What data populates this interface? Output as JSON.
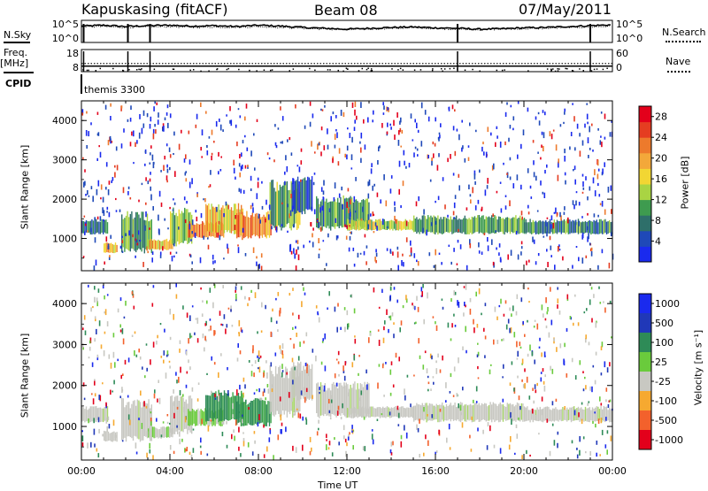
{
  "header": {
    "station": "Kapuskasing (fitACF)",
    "beam": "Beam 08",
    "date": "07/May/2011"
  },
  "labels": {
    "nsky": "N.Sky",
    "freq": "Freq.",
    "freq_unit": "[MHz]",
    "cpid": "CPID",
    "nsearch": "N.Search",
    "nave": "Nave",
    "cpid_value": "themis 3300",
    "slant_range": "Slant Range [km]",
    "time_ut": "Time UT",
    "power_label": "Power [dB]",
    "velocity_label": "Velocity [m s⁻¹]"
  },
  "colors": {
    "power_scale": [
      "#1a2aee",
      "#1f49b8",
      "#2e6f6a",
      "#3e9b4f",
      "#a9d443",
      "#f2d633",
      "#f3a83a",
      "#ed7a2c",
      "#e53d21",
      "#e3001b"
    ],
    "velocity_scale": [
      "#e3001b",
      "#f3612c",
      "#f6a930",
      "#c8c8c2",
      "#c8c8c2",
      "#6acb3c",
      "#2e8b57",
      "#2038b8",
      "#1a2aee"
    ]
  },
  "chart_data": [
    {
      "type": "line",
      "panel": "nsky-nsearch",
      "x_unit": "hours UT",
      "xlim": [
        0,
        24
      ],
      "y_tick_labels_left": [
        "10^5",
        "10^0"
      ],
      "y_tick_labels_right": [
        "10^5",
        "10^0"
      ],
      "series": [
        {
          "name": "N.Sky",
          "x": [
            0,
            1,
            2,
            3,
            4,
            5,
            6,
            7,
            8,
            9,
            10,
            11,
            12,
            13,
            14,
            15,
            16,
            17,
            18,
            19,
            20,
            21,
            22,
            23,
            24
          ],
          "values": [
            3.7,
            3.9,
            3.6,
            3.8,
            3.9,
            3.7,
            3.8,
            3.6,
            3.9,
            3.7,
            3.4,
            3.2,
            3.0,
            3.2,
            3.4,
            3.5,
            3.3,
            3.2,
            3.0,
            3.1,
            3.3,
            3.4,
            3.6,
            3.8,
            4.0
          ]
        },
        {
          "name": "N.Search",
          "x": [
            0,
            1,
            2,
            3,
            4,
            5,
            6,
            7,
            8,
            9,
            10,
            11,
            12,
            13,
            14,
            15,
            16,
            17,
            18,
            19,
            20,
            21,
            22,
            23,
            24
          ],
          "values": [
            3.5,
            3.6,
            3.4,
            3.5,
            3.6,
            3.4,
            3.5,
            3.4,
            3.6,
            3.4,
            3.2,
            3.0,
            2.9,
            3.0,
            3.2,
            3.3,
            3.1,
            3.0,
            2.9,
            3.0,
            3.1,
            3.2,
            3.4,
            3.5,
            3.7
          ]
        }
      ],
      "scan_markers_x": [
        0.1,
        2.1,
        3.1,
        17.0,
        23.0
      ]
    },
    {
      "type": "line",
      "panel": "freq-nave",
      "x_unit": "hours UT",
      "xlim": [
        0,
        24
      ],
      "y_tick_labels_left": [
        "18",
        "8"
      ],
      "y_tick_labels_right": [
        "60",
        "0"
      ],
      "series": [
        {
          "name": "Freq.",
          "x": [
            0,
            24
          ],
          "values": [
            10.5,
            10.5
          ]
        },
        {
          "name": "Nave",
          "x": [
            0,
            24
          ],
          "values": [
            22,
            22
          ]
        }
      ]
    },
    {
      "type": "heatmap",
      "panel": "power",
      "xlim": [
        0,
        24
      ],
      "ylim": [
        180,
        4500
      ],
      "x_tick_labels": [
        "00:00",
        "04:00",
        "08:00",
        "12:00",
        "16:00",
        "20:00",
        "00:00"
      ],
      "y_tick_labels": [
        "1000",
        "2000",
        "3000",
        "4000"
      ],
      "colorbar_ticks": [
        "4",
        "8",
        "12",
        "16",
        "20",
        "24",
        "28"
      ],
      "colorbar_range": [
        0,
        30
      ],
      "echo_regions": [
        {
          "t0": 0.0,
          "t1": 1.2,
          "r0": 1100,
          "r1": 1500,
          "value": 7
        },
        {
          "t0": 1.0,
          "t1": 1.6,
          "r0": 620,
          "r1": 900,
          "value": 18
        },
        {
          "t0": 1.8,
          "t1": 3.2,
          "r0": 620,
          "r1": 1700,
          "value": 10
        },
        {
          "t0": 3.0,
          "t1": 4.1,
          "r0": 700,
          "r1": 1000,
          "value": 19
        },
        {
          "t0": 4.0,
          "t1": 5.0,
          "r0": 800,
          "r1": 1800,
          "value": 12
        },
        {
          "t0": 4.8,
          "t1": 6.4,
          "r0": 1000,
          "r1": 1450,
          "value": 24
        },
        {
          "t0": 5.6,
          "t1": 7.3,
          "r0": 1100,
          "r1": 1900,
          "value": 18
        },
        {
          "t0": 7.0,
          "t1": 8.6,
          "r0": 1000,
          "r1": 1700,
          "value": 22
        },
        {
          "t0": 8.5,
          "t1": 9.9,
          "r0": 1200,
          "r1": 2500,
          "value": 11
        },
        {
          "t0": 9.5,
          "t1": 10.4,
          "r0": 1600,
          "r1": 2600,
          "value": 5
        },
        {
          "t0": 10.6,
          "t1": 13.0,
          "r0": 1200,
          "r1": 2100,
          "value": 9
        },
        {
          "t0": 12.0,
          "t1": 15.0,
          "r0": 1200,
          "r1": 1500,
          "value": 15
        },
        {
          "t0": 15.0,
          "t1": 20.0,
          "r0": 1100,
          "r1": 1600,
          "value": 10
        },
        {
          "t0": 20.0,
          "t1": 24.0,
          "r0": 1100,
          "r1": 1500,
          "value": 8
        }
      ]
    },
    {
      "type": "heatmap",
      "panel": "velocity",
      "xlim": [
        0,
        24
      ],
      "ylim": [
        180,
        4500
      ],
      "x_tick_labels": [
        "00:00",
        "04:00",
        "08:00",
        "12:00",
        "16:00",
        "20:00",
        "00:00"
      ],
      "y_tick_labels": [
        "1000",
        "2000",
        "3000",
        "4000"
      ],
      "colorbar_ticks": [
        "-1000",
        "-500",
        "-100",
        "-25",
        "25",
        "100",
        "500",
        "1000"
      ],
      "echo_regions": [
        {
          "t0": 0.0,
          "t1": 1.2,
          "r0": 1100,
          "r1": 1500,
          "value": 0
        },
        {
          "t0": 1.0,
          "t1": 1.6,
          "r0": 620,
          "r1": 900,
          "value": 0
        },
        {
          "t0": 1.8,
          "t1": 3.2,
          "r0": 620,
          "r1": 1700,
          "value": 0
        },
        {
          "t0": 3.0,
          "t1": 4.1,
          "r0": 700,
          "r1": 1000,
          "value": 60
        },
        {
          "t0": 4.0,
          "t1": 5.0,
          "r0": 800,
          "r1": 1800,
          "value": 0
        },
        {
          "t0": 4.8,
          "t1": 6.4,
          "r0": 1000,
          "r1": 1450,
          "value": 80
        },
        {
          "t0": 5.6,
          "t1": 7.3,
          "r0": 1100,
          "r1": 1900,
          "value": 150
        },
        {
          "t0": 7.0,
          "t1": 8.6,
          "r0": 1000,
          "r1": 1700,
          "value": 120
        },
        {
          "t0": 8.5,
          "t1": 9.9,
          "r0": 1200,
          "r1": 2500,
          "value": 0
        },
        {
          "t0": 9.5,
          "t1": 10.4,
          "r0": 1600,
          "r1": 2600,
          "value": 0
        },
        {
          "t0": 10.6,
          "t1": 13.0,
          "r0": 1200,
          "r1": 2100,
          "value": 0
        },
        {
          "t0": 12.0,
          "t1": 15.0,
          "r0": 1200,
          "r1": 1500,
          "value": 0
        },
        {
          "t0": 15.0,
          "t1": 20.0,
          "r0": 1100,
          "r1": 1600,
          "value": 0
        },
        {
          "t0": 20.0,
          "t1": 24.0,
          "r0": 1100,
          "r1": 1500,
          "value": 0
        }
      ]
    }
  ]
}
